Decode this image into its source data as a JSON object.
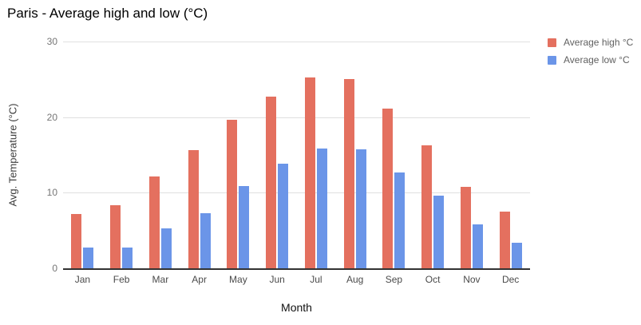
{
  "chart_data": {
    "type": "bar",
    "title": "Paris - Average high and low (°C)",
    "xlabel": "Month",
    "ylabel": "Avg. Temperature (°C)",
    "categories": [
      "Jan",
      "Feb",
      "Mar",
      "Apr",
      "May",
      "Jun",
      "Jul",
      "Aug",
      "Sep",
      "Oct",
      "Nov",
      "Dec"
    ],
    "series": [
      {
        "name": "Average high °C",
        "color": "#e4705f",
        "values": [
          7.2,
          8.3,
          12.2,
          15.6,
          19.6,
          22.7,
          25.2,
          25.0,
          21.1,
          16.3,
          10.8,
          7.5
        ]
      },
      {
        "name": "Average low °C",
        "color": "#6b95e8",
        "values": [
          2.7,
          2.8,
          5.3,
          7.3,
          10.9,
          13.8,
          15.8,
          15.7,
          12.7,
          9.6,
          5.8,
          3.4
        ]
      }
    ],
    "ylim": [
      0,
      30
    ],
    "yticks": [
      0,
      10,
      20,
      30
    ],
    "grid": true,
    "legend_position": "top-right"
  },
  "colors": {
    "grid": "#e0e0e0",
    "axis_line": "#333333",
    "tick_text": "#757575",
    "title_text": "#000000"
  }
}
